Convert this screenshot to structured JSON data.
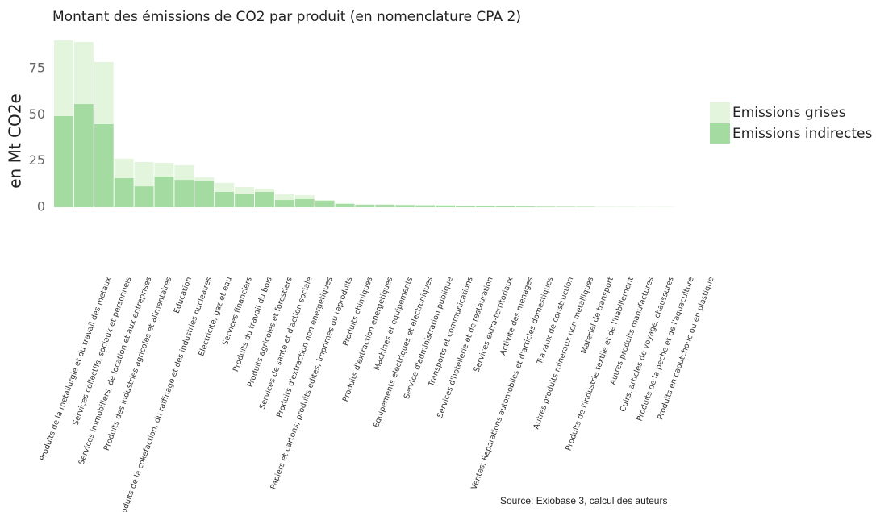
{
  "chart_data": {
    "type": "stacked_bar",
    "title": "Montant des émissions de CO2 par produit (en nomenclature CPA 2)",
    "y_label": "en Mt CO2e",
    "source": "Source: Exiobase 3, calcul des auteurs",
    "categories": [
      "Produits de la metallurgie et du travail des metaux",
      "Services collectifs, sociaux et personnels",
      "Services immobiliers, de location et aux entreprises",
      "Produits des industries agricoles et alimentaires",
      "Education",
      "Produits de la cokefaction, du raffinage et des industries nucleaires",
      "Electricite, gaz et eau",
      "Services financiers",
      "Produits du travail du bois",
      "Produits agricoles et forestiers",
      "Services de sante et d'action sociale",
      "Produits d'extraction non energetiques",
      "Papiers et cartons; produits edites, imprimes ou reproduits",
      "Produits chimiques",
      "Produits d'extraction energetiques",
      "Machines et equipements",
      "Equipements electriques et electroniques",
      "Service d'administration publique",
      "Transports et communications",
      "Services d'hotellerie et de restauration",
      "Services extra-territoriaux",
      "Activite des menages",
      "Ventes; Reparations automobiles et d'articles domestiques",
      "Travaux de construction",
      "Autres produits mineraux non metalliques",
      "Materiel de transport",
      "Produits de l'industrie textile et de l'habillement",
      "Autres produits manufactures",
      "Cuirs, articles de voyage, chaussures",
      "Produits de la peche et de l'aquaculture",
      "Produits en caoutchouc ou en plastique"
    ],
    "series": [
      {
        "name": "Emissions indirectes",
        "color": "#a3dba0",
        "values": [
          49.3,
          55.8,
          44.9,
          15.7,
          11.3,
          16.6,
          14.8,
          14.4,
          8.3,
          7.4,
          8.3,
          3.9,
          4.4,
          3.5,
          1.8,
          1.3,
          1.3,
          1.1,
          1.0,
          0.9,
          0.6,
          0.5,
          0.5,
          0.4,
          0.3,
          0.2,
          0.2,
          0.1,
          0.1,
          0.05,
          0.05
        ]
      },
      {
        "name": "Emissions grises",
        "color": "#e3f5dd",
        "values": [
          41.0,
          33.6,
          33.6,
          10.5,
          13.1,
          7.4,
          7.9,
          1.7,
          4.8,
          3.5,
          1.7,
          3.1,
          2.1,
          0.4,
          0.4,
          0.3,
          0.3,
          0.3,
          0.3,
          0.3,
          0.3,
          0.3,
          0.3,
          0.2,
          0.2,
          0.2,
          0.1,
          0.1,
          0.05,
          0.05,
          0.05
        ]
      }
    ],
    "ylim": [
      0,
      92
    ],
    "yticks": [
      0,
      25,
      50,
      75
    ],
    "legend": "right"
  }
}
